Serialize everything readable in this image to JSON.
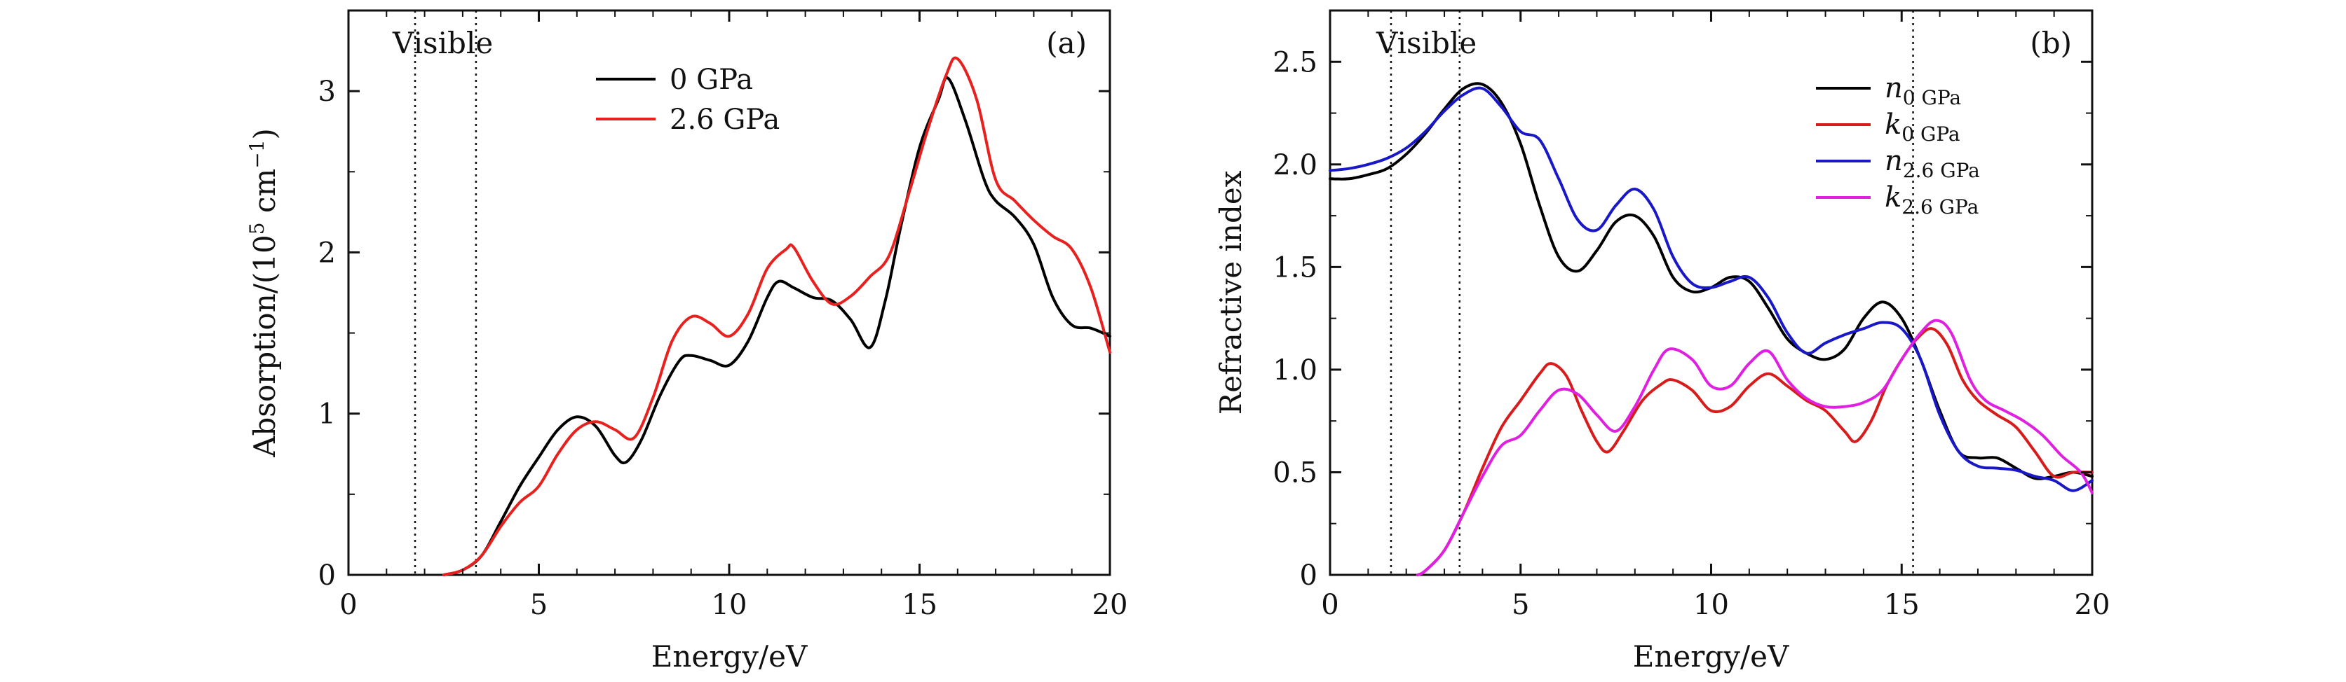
{
  "chart_data": [
    {
      "type": "line",
      "panel_label": "(a)",
      "xlabel": "Energy/eV",
      "ylabel": "Absorption/(10⁵ cm⁻¹)",
      "xlim": [
        0,
        20
      ],
      "ylim": [
        0,
        3.5
      ],
      "xticks": [
        0,
        5,
        10,
        15,
        20
      ],
      "yticks": [
        0,
        1,
        2,
        3
      ],
      "annotation": "Visible",
      "vlines": [
        1.75,
        3.35
      ],
      "legend_position": "top-center",
      "series": [
        {
          "name": "0 GPa",
          "color": "#000000",
          "x": [
            2.5,
            3.0,
            3.5,
            4.0,
            4.5,
            5.0,
            5.5,
            6.0,
            6.5,
            7.0,
            7.3,
            7.7,
            8.2,
            8.7,
            9.0,
            9.5,
            10.0,
            10.5,
            11.0,
            11.3,
            11.7,
            12.2,
            12.7,
            13.2,
            13.7,
            14.1,
            14.5,
            15.0,
            15.5,
            15.75,
            16.2,
            16.7,
            17.0,
            17.5,
            18.0,
            18.5,
            19.0,
            19.5,
            20.0
          ],
          "values": [
            0.0,
            0.03,
            0.12,
            0.33,
            0.55,
            0.73,
            0.9,
            0.98,
            0.92,
            0.74,
            0.7,
            0.84,
            1.12,
            1.33,
            1.36,
            1.33,
            1.3,
            1.45,
            1.72,
            1.82,
            1.78,
            1.72,
            1.7,
            1.58,
            1.41,
            1.7,
            2.15,
            2.65,
            2.95,
            3.08,
            2.82,
            2.45,
            2.32,
            2.22,
            2.05,
            1.72,
            1.55,
            1.53,
            1.48
          ]
        },
        {
          "name": "2.6 GPa",
          "color": "#e8201e",
          "x": [
            2.5,
            3.0,
            3.5,
            4.0,
            4.5,
            5.0,
            5.5,
            6.0,
            6.5,
            7.0,
            7.5,
            8.0,
            8.5,
            9.0,
            9.5,
            10.0,
            10.5,
            11.0,
            11.5,
            11.7,
            12.2,
            12.7,
            13.2,
            13.7,
            14.2,
            14.7,
            15.2,
            15.7,
            16.0,
            16.5,
            17.0,
            17.5,
            18.0,
            18.5,
            19.0,
            19.5,
            20.0
          ],
          "values": [
            0.0,
            0.03,
            0.12,
            0.3,
            0.45,
            0.55,
            0.75,
            0.9,
            0.95,
            0.9,
            0.85,
            1.1,
            1.45,
            1.6,
            1.56,
            1.48,
            1.62,
            1.9,
            2.02,
            2.03,
            1.82,
            1.68,
            1.73,
            1.85,
            1.98,
            2.35,
            2.75,
            3.1,
            3.2,
            2.95,
            2.45,
            2.32,
            2.2,
            2.1,
            2.02,
            1.78,
            1.38
          ]
        }
      ]
    },
    {
      "type": "line",
      "panel_label": "(b)",
      "xlabel": "Energy/eV",
      "ylabel": "Refractive index",
      "xlim": [
        0,
        20
      ],
      "ylim": [
        0,
        2.75
      ],
      "xticks": [
        0,
        5,
        10,
        15,
        20
      ],
      "yticks": [
        0,
        0.5,
        1.0,
        1.5,
        2.0,
        2.5
      ],
      "ytick_labels": [
        "0",
        "0.5",
        "1.0",
        "1.5",
        "2.0",
        "2.5"
      ],
      "annotation": "Visible",
      "vlines": [
        1.6,
        3.4,
        15.3
      ],
      "legend_position": "top-right",
      "series": [
        {
          "name": "n",
          "name_sub": "0 GPa",
          "color": "#000000",
          "x": [
            0,
            0.5,
            1.0,
            1.5,
            2.0,
            2.5,
            3.0,
            3.5,
            4.0,
            4.5,
            5.0,
            5.5,
            6.0,
            6.5,
            7.0,
            7.5,
            8.0,
            8.5,
            9.0,
            9.5,
            10.0,
            10.5,
            11.0,
            11.5,
            12.0,
            12.5,
            13.0,
            13.5,
            14.0,
            14.5,
            15.0,
            15.5,
            16.0,
            16.5,
            17.0,
            17.5,
            18.0,
            18.5,
            19.0,
            19.5,
            20.0
          ],
          "values": [
            1.93,
            1.93,
            1.95,
            1.98,
            2.05,
            2.15,
            2.27,
            2.37,
            2.39,
            2.3,
            2.1,
            1.8,
            1.55,
            1.48,
            1.58,
            1.72,
            1.75,
            1.65,
            1.45,
            1.38,
            1.4,
            1.45,
            1.43,
            1.3,
            1.15,
            1.08,
            1.05,
            1.1,
            1.25,
            1.33,
            1.25,
            1.05,
            0.8,
            0.6,
            0.57,
            0.57,
            0.52,
            0.47,
            0.48,
            0.5,
            0.48
          ]
        },
        {
          "name": "k",
          "name_sub": "0 GPa",
          "color": "#d81c1c",
          "x": [
            2.3,
            2.5,
            3.0,
            3.5,
            4.0,
            4.5,
            5.0,
            5.5,
            5.8,
            6.2,
            6.6,
            7.0,
            7.3,
            7.7,
            8.2,
            8.7,
            9.0,
            9.5,
            10.0,
            10.5,
            11.0,
            11.5,
            12.0,
            12.5,
            13.0,
            13.5,
            13.8,
            14.2,
            14.6,
            15.0,
            15.4,
            15.8,
            16.2,
            16.6,
            17.0,
            17.5,
            18.0,
            18.5,
            19.0,
            19.5,
            20.0
          ],
          "values": [
            0.0,
            0.02,
            0.12,
            0.3,
            0.52,
            0.72,
            0.85,
            0.98,
            1.03,
            0.97,
            0.8,
            0.65,
            0.6,
            0.7,
            0.85,
            0.93,
            0.95,
            0.9,
            0.8,
            0.82,
            0.92,
            0.98,
            0.92,
            0.85,
            0.8,
            0.7,
            0.65,
            0.75,
            0.92,
            1.05,
            1.15,
            1.2,
            1.12,
            0.95,
            0.85,
            0.78,
            0.72,
            0.6,
            0.48,
            0.5,
            0.5
          ]
        },
        {
          "name": "n",
          "name_sub": "2.6 GPa",
          "color": "#1818c8",
          "x": [
            0,
            0.5,
            1.0,
            1.5,
            2.0,
            2.5,
            3.0,
            3.5,
            4.0,
            4.5,
            5.0,
            5.5,
            6.0,
            6.5,
            7.0,
            7.5,
            8.0,
            8.5,
            9.0,
            9.5,
            10.0,
            10.5,
            11.0,
            11.5,
            12.0,
            12.5,
            13.0,
            13.5,
            14.0,
            14.5,
            15.0,
            15.5,
            16.0,
            16.5,
            17.0,
            17.5,
            18.0,
            18.5,
            19.0,
            19.5,
            20.0
          ],
          "values": [
            1.97,
            1.98,
            2.0,
            2.03,
            2.08,
            2.16,
            2.26,
            2.34,
            2.37,
            2.28,
            2.16,
            2.12,
            1.93,
            1.73,
            1.68,
            1.8,
            1.88,
            1.78,
            1.55,
            1.42,
            1.4,
            1.43,
            1.45,
            1.35,
            1.18,
            1.08,
            1.13,
            1.17,
            1.2,
            1.23,
            1.2,
            1.05,
            0.78,
            0.6,
            0.53,
            0.52,
            0.51,
            0.48,
            0.46,
            0.41,
            0.46
          ]
        },
        {
          "name": "k",
          "name_sub": "2.6 GPa",
          "color": "#e020e0",
          "x": [
            2.3,
            2.5,
            3.0,
            3.5,
            4.0,
            4.5,
            5.0,
            5.5,
            6.0,
            6.5,
            7.0,
            7.5,
            8.0,
            8.5,
            8.9,
            9.5,
            10.0,
            10.5,
            11.0,
            11.5,
            12.0,
            12.5,
            13.0,
            13.5,
            14.0,
            14.5,
            15.0,
            15.5,
            15.9,
            16.3,
            16.8,
            17.2,
            17.7,
            18.2,
            18.7,
            19.2,
            19.7,
            20.0
          ],
          "values": [
            0.0,
            0.02,
            0.12,
            0.3,
            0.48,
            0.63,
            0.68,
            0.8,
            0.9,
            0.88,
            0.78,
            0.7,
            0.82,
            1.0,
            1.1,
            1.05,
            0.92,
            0.92,
            1.03,
            1.09,
            0.95,
            0.86,
            0.82,
            0.82,
            0.84,
            0.9,
            1.05,
            1.18,
            1.24,
            1.18,
            0.95,
            0.85,
            0.8,
            0.75,
            0.68,
            0.58,
            0.5,
            0.4
          ]
        }
      ]
    }
  ]
}
